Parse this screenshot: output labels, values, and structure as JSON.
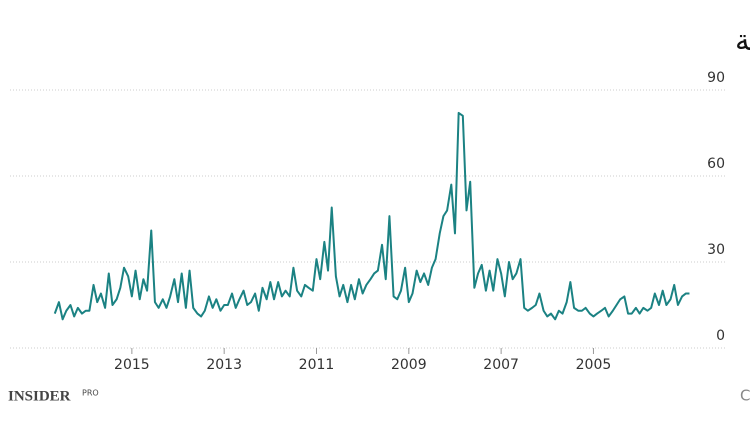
{
  "chart_data": {
    "type": "line",
    "title": "مؤشر تقلبات VIX بورصة شيكاغو للخيارات الثنائية",
    "source": "المصدر: بورصة شيكاغو للخيارات الثنائية CBOE",
    "logo": "INSIDER",
    "logo_suffix": "PRO",
    "color": "#1b8283",
    "xlim": [
      2017.64,
      2002.15
    ],
    "xticks": [
      2015,
      2013,
      2011,
      2009,
      2007,
      2005
    ],
    "ylim": [
      0,
      90
    ],
    "yticks": [
      0,
      30,
      60,
      90
    ],
    "grid": true,
    "x": [
      2016.67,
      2016.58,
      2016.5,
      2016.42,
      2016.33,
      2016.25,
      2016.17,
      2016.08,
      2016.0,
      2015.92,
      2015.83,
      2015.75,
      2015.67,
      2015.58,
      2015.5,
      2015.42,
      2015.33,
      2015.25,
      2015.17,
      2015.08,
      2015.0,
      2014.92,
      2014.83,
      2014.75,
      2014.67,
      2014.58,
      2014.5,
      2014.42,
      2014.33,
      2014.25,
      2014.17,
      2014.08,
      2014.0,
      2013.92,
      2013.83,
      2013.75,
      2013.67,
      2013.58,
      2013.5,
      2013.42,
      2013.33,
      2013.25,
      2013.17,
      2013.08,
      2013.0,
      2012.92,
      2012.83,
      2012.75,
      2012.67,
      2012.58,
      2012.5,
      2012.42,
      2012.33,
      2012.25,
      2012.17,
      2012.08,
      2012.0,
      2011.92,
      2011.83,
      2011.75,
      2011.67,
      2011.58,
      2011.5,
      2011.42,
      2011.33,
      2011.25,
      2011.17,
      2011.08,
      2011.0,
      2010.92,
      2010.83,
      2010.75,
      2010.67,
      2010.58,
      2010.5,
      2010.42,
      2010.33,
      2010.25,
      2010.17,
      2010.08,
      2010.0,
      2009.92,
      2009.83,
      2009.75,
      2009.67,
      2009.58,
      2009.5,
      2009.42,
      2009.33,
      2009.25,
      2009.17,
      2009.08,
      2009.0,
      2008.92,
      2008.83,
      2008.75,
      2008.67,
      2008.58,
      2008.5,
      2008.42,
      2008.33,
      2008.25,
      2008.17,
      2008.08,
      2008.0,
      2007.92,
      2007.83,
      2007.75,
      2007.67,
      2007.58,
      2007.5,
      2007.42,
      2007.33,
      2007.25,
      2007.17,
      2007.08,
      2007.0,
      2006.92,
      2006.83,
      2006.75,
      2006.67,
      2006.58,
      2006.5,
      2006.42,
      2006.33,
      2006.25,
      2006.17,
      2006.08,
      2006.0,
      2005.92,
      2005.83,
      2005.75,
      2005.67,
      2005.58,
      2005.5,
      2005.42,
      2005.33,
      2005.25,
      2005.17,
      2005.08,
      2005.0,
      2004.92,
      2004.83,
      2004.75,
      2004.67,
      2004.58,
      2004.5,
      2004.42,
      2004.33,
      2004.25,
      2004.17,
      2004.08,
      2004.0,
      2003.92,
      2003.83,
      2003.75,
      2003.67,
      2003.58,
      2003.5,
      2003.42,
      2003.33,
      2003.25,
      2003.17,
      2003.08,
      2003.0,
      2002.92
    ],
    "values": [
      12,
      16,
      10,
      13,
      15,
      11,
      14,
      12,
      13,
      13,
      22,
      16,
      19,
      14,
      26,
      15,
      17,
      21,
      28,
      25,
      18,
      27,
      17,
      24,
      20,
      41,
      16,
      14,
      17,
      14,
      18,
      24,
      16,
      26,
      14,
      27,
      14,
      12,
      11,
      13,
      18,
      14,
      17,
      13,
      15,
      15,
      19,
      14,
      17,
      20,
      15,
      16,
      19,
      13,
      21,
      17,
      23,
      17,
      23,
      18,
      20,
      18,
      28,
      20,
      18,
      22,
      21,
      20,
      31,
      24,
      37,
      27,
      49,
      25,
      18,
      22,
      16,
      22,
      17,
      24,
      19,
      22,
      24,
      26,
      27,
      36,
      24,
      46,
      18,
      17,
      20,
      28,
      16,
      19,
      27,
      23,
      26,
      22,
      28,
      31,
      40,
      46,
      48,
      57,
      40,
      82,
      81,
      48,
      58,
      21,
      26,
      29,
      20,
      27,
      20,
      31,
      26,
      18,
      30,
      24,
      26,
      31,
      14,
      13,
      14,
      15,
      19,
      13,
      11,
      12,
      10,
      13,
      12,
      16,
      23,
      14,
      13,
      13,
      14,
      12,
      11,
      12,
      13,
      14,
      11,
      13,
      15,
      17,
      18,
      12,
      12,
      14,
      12,
      14,
      13,
      14,
      19,
      15,
      20,
      15,
      17,
      22,
      15,
      18,
      19,
      19
    ]
  }
}
